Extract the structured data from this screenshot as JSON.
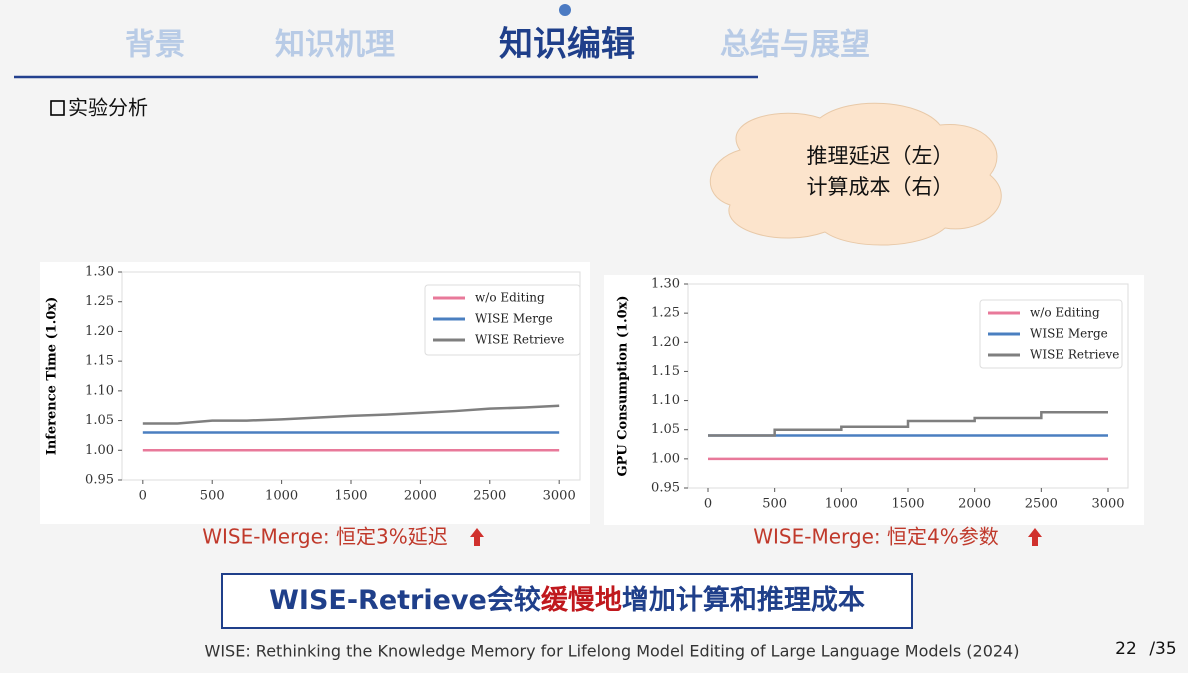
{
  "nav": [
    "背景",
    "知识机理",
    "知识编辑",
    "总结与展望"
  ],
  "section": "实验分析",
  "cloud": [
    "推理延迟（左）",
    "计算成本（右）"
  ],
  "chart_data": [
    {
      "type": "line",
      "ylabel": "Inference Time (1.0x)",
      "x": [
        0,
        250,
        500,
        750,
        1000,
        1250,
        1500,
        1750,
        2000,
        2250,
        2500,
        2750,
        3000
      ],
      "series": [
        {
          "name": "w/o Editing",
          "color": "#e8799a",
          "values": [
            1,
            1,
            1,
            1,
            1,
            1,
            1,
            1,
            1,
            1,
            1,
            1,
            1
          ]
        },
        {
          "name": "WISE Merge",
          "color": "#4a7fc0",
          "values": [
            1.03,
            1.03,
            1.03,
            1.03,
            1.03,
            1.03,
            1.03,
            1.03,
            1.03,
            1.03,
            1.03,
            1.03,
            1.03
          ]
        },
        {
          "name": "WISE Retrieve",
          "color": "#7f7f7f",
          "values": [
            1.045,
            1.045,
            1.05,
            1.05,
            1.052,
            1.055,
            1.058,
            1.06,
            1.063,
            1.066,
            1.07,
            1.072,
            1.075
          ]
        }
      ],
      "xlim": [
        -150,
        3150
      ],
      "ylim": [
        0.95,
        1.3
      ],
      "xticks": [
        0,
        500,
        1000,
        1500,
        2000,
        2500,
        3000
      ],
      "yticks": [
        0.95,
        {
          "value": 1,
          "label": "1.00"
        },
        1.05,
        {
          "value": 1.1,
          "label": "1.10"
        },
        1.15,
        {
          "value": 1.2,
          "label": "1.20"
        },
        1.25,
        {
          "value": 1.3,
          "label": "1.30"
        }
      ],
      "caption": "WISE-Merge: 恒定3%延迟"
    },
    {
      "type": "line",
      "ylabel": "GPU Consumption (1.0x)",
      "x": [
        0,
        500,
        500,
        1000,
        1000,
        1500,
        1500,
        2000,
        2000,
        2500,
        2500,
        3000
      ],
      "series": [
        {
          "name": "w/o Editing",
          "color": "#e8799a",
          "values": [
            1,
            1,
            1,
            1,
            1,
            1,
            1,
            1,
            1,
            1,
            1,
            1
          ]
        },
        {
          "name": "WISE Merge",
          "color": "#4a7fc0",
          "values": [
            1.04,
            1.04,
            1.04,
            1.04,
            1.04,
            1.04,
            1.04,
            1.04,
            1.04,
            1.04,
            1.04,
            1.04
          ]
        },
        {
          "name": "WISE Retrieve",
          "color": "#7f7f7f",
          "values": [
            1.04,
            1.04,
            1.05,
            1.05,
            1.055,
            1.055,
            1.065,
            1.065,
            1.07,
            1.07,
            1.08,
            1.08
          ]
        }
      ],
      "xlim": [
        -150,
        3150
      ],
      "ylim": [
        0.95,
        1.3
      ],
      "xticks": [
        0,
        500,
        1000,
        1500,
        2000,
        2500,
        3000
      ],
      "yticks": [
        0.95,
        {
          "value": 1,
          "label": "1.00"
        },
        1.05,
        {
          "value": 1.1,
          "label": "1.10"
        },
        1.15,
        {
          "value": 1.2,
          "label": "1.20"
        },
        1.25,
        {
          "value": 1.3,
          "label": "1.30"
        }
      ],
      "caption": "WISE-Merge: 恒定4%参数"
    }
  ],
  "conclusion": [
    "WISE-Retrieve会较",
    "缓慢地",
    "增加计算和推理成本"
  ],
  "citation": "WISE: Rethinking the Knowledge Memory for Lifelong Model Editing of Large Language Models (2024)",
  "page": [
    "22",
    "/35"
  ]
}
